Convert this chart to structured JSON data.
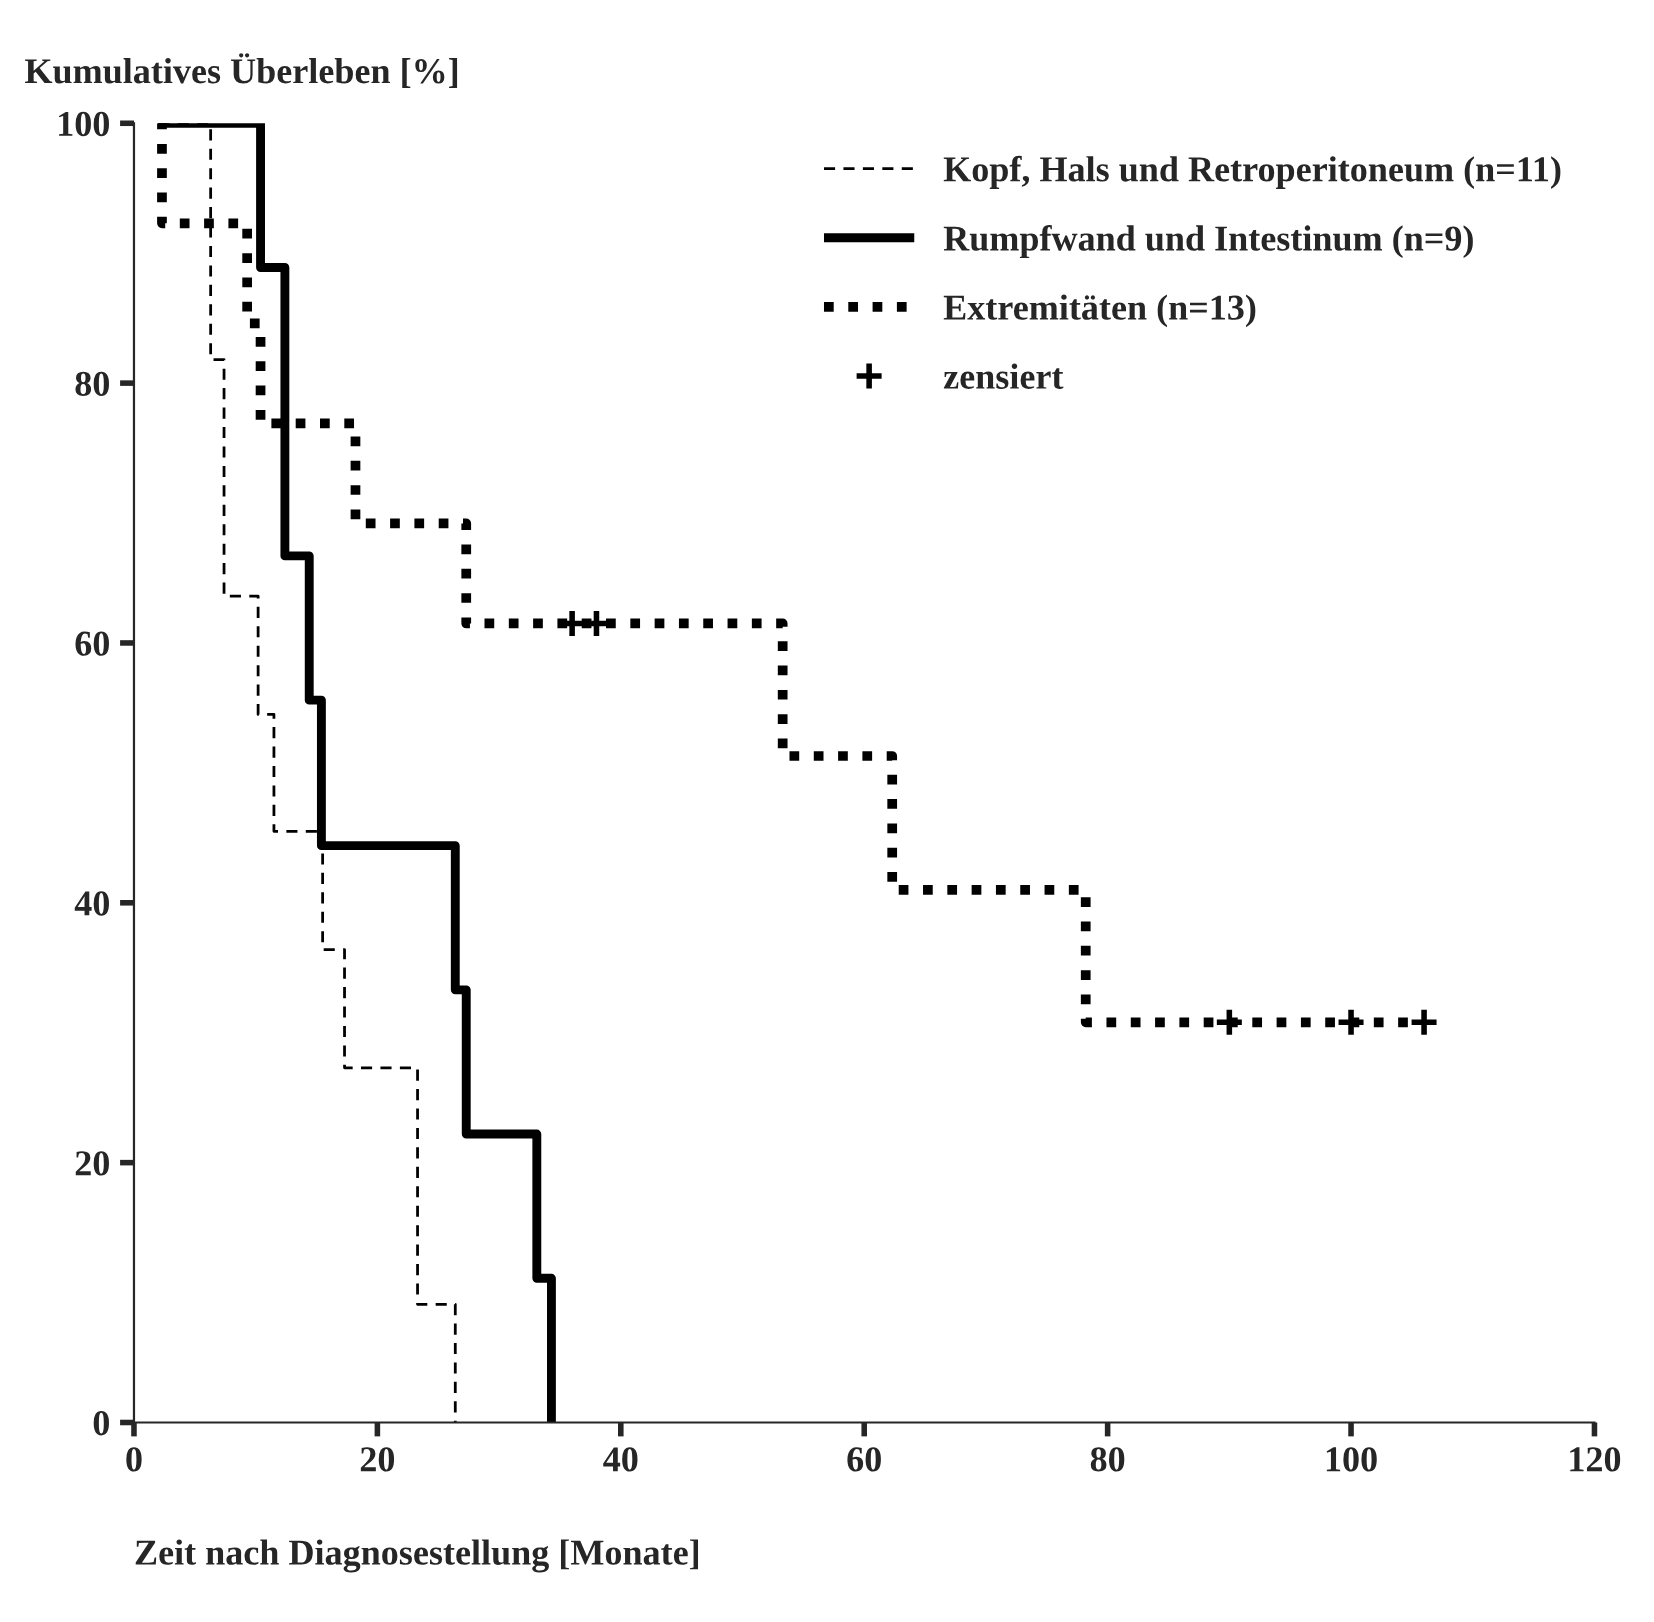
{
  "chart_data": {
    "type": "step",
    "xlabel": "Zeit nach Diagnosestellung [Monate]",
    "ylabel": "Kumulatives Überleben [%]",
    "xlim": [
      0,
      120
    ],
    "xticks": [
      0,
      20,
      40,
      60,
      80,
      100,
      120
    ],
    "ylim": [
      0,
      100
    ],
    "yticks": [
      0,
      20,
      40,
      60,
      80,
      100
    ],
    "grid": false,
    "legend": "top right",
    "series": [
      {
        "name": "Kopf, Hals und Retroperitoneum (n=11)",
        "color": "#000000",
        "line_style": "dashed",
        "x": [
          2,
          6.3,
          7.4,
          10.2,
          11.5,
          15.5,
          17.3,
          23.3,
          26.4
        ],
        "values": [
          100,
          81.8,
          63.6,
          54.5,
          45.5,
          36.4,
          27.3,
          9.1,
          0
        ]
      },
      {
        "name": "Rumpfwand und Intestinum (n=9)",
        "color": "#000000",
        "line_style": "solid",
        "x": [
          2,
          10.4,
          12.4,
          14.4,
          15.4,
          26.4,
          27.3,
          33.1,
          34.3
        ],
        "values": [
          100,
          88.9,
          66.7,
          55.6,
          44.4,
          33.3,
          22.2,
          11.1,
          0
        ]
      },
      {
        "name": "Extremitäten (n=13)",
        "color": "#000000",
        "line_style": "dotted",
        "x": [
          2,
          2.3,
          9.3,
          10.4,
          18.2,
          27.3,
          53.3,
          62.3,
          78.2,
          106
        ],
        "values": [
          100,
          92.3,
          84.6,
          76.9,
          69.2,
          61.5,
          51.3,
          41.0,
          30.8,
          30.8
        ]
      },
      {
        "name": "zensiert",
        "type": "scatter",
        "marker": "cross",
        "color": "#000000",
        "x": [
          36,
          38,
          90,
          100,
          106
        ],
        "values": [
          61.5,
          61.5,
          30.8,
          30.8,
          30.8
        ]
      }
    ]
  }
}
